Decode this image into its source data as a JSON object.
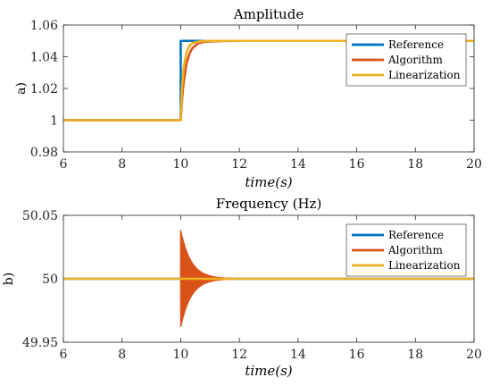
{
  "chart_data": [
    {
      "type": "line",
      "title": "Amplitude",
      "ylabel": "a)",
      "xlabel": "time(s)",
      "xlim": [
        6,
        20
      ],
      "ylim": [
        0.98,
        1.06
      ],
      "xticks": [
        "6",
        "8",
        "10",
        "12",
        "14",
        "16",
        "18",
        "20"
      ],
      "yticks": [
        "0.98",
        "1",
        "1.02",
        "1.04",
        "1.06"
      ],
      "legend_position": "top-right",
      "series": [
        {
          "name": "Reference",
          "color": "#0072BD",
          "x": [
            6,
            10,
            10,
            20
          ],
          "y": [
            1.0,
            1.0,
            1.05,
            1.05
          ]
        },
        {
          "name": "Algorithm",
          "color": "#D95319",
          "x": [
            6,
            10,
            10.05,
            10.1,
            10.2,
            10.3,
            10.4,
            10.6,
            10.8,
            11.0,
            11.4,
            12.0,
            20
          ],
          "y": [
            1.0,
            1.0,
            1.014,
            1.024,
            1.036,
            1.042,
            1.0455,
            1.0485,
            1.0494,
            1.0497,
            1.0499,
            1.05,
            1.05
          ]
        },
        {
          "name": "Linearization",
          "color": "#EDB120",
          "x": [
            6,
            10,
            10.05,
            10.1,
            10.2,
            10.3,
            10.4,
            10.6,
            10.8,
            11.0,
            20
          ],
          "y": [
            1.0,
            1.0,
            1.022,
            1.033,
            1.043,
            1.047,
            1.0485,
            1.0495,
            1.0499,
            1.05,
            1.05
          ]
        }
      ]
    },
    {
      "type": "line",
      "title": "Frequency (Hz)",
      "ylabel": "b)",
      "xlabel": "time(s)",
      "xlim": [
        6,
        20
      ],
      "ylim": [
        49.95,
        50.05
      ],
      "xticks": [
        "6",
        "8",
        "10",
        "12",
        "14",
        "16",
        "18",
        "20"
      ],
      "yticks": [
        "49.95",
        "50",
        "50.05"
      ],
      "legend_position": "top-right",
      "series": [
        {
          "name": "Reference",
          "color": "#0072BD",
          "x": [
            6,
            20
          ],
          "y": [
            50,
            50
          ]
        },
        {
          "name": "Algorithm",
          "color": "#D95319",
          "oscillation": {
            "start": 10,
            "amplitude": 0.038,
            "decay_time": 0.35,
            "period": 0.01
          },
          "x": [
            6,
            10,
            20
          ],
          "y": [
            50,
            50,
            50
          ]
        },
        {
          "name": "Linearization",
          "color": "#EDB120",
          "x": [
            6,
            20
          ],
          "y": [
            50,
            50
          ]
        }
      ]
    }
  ]
}
